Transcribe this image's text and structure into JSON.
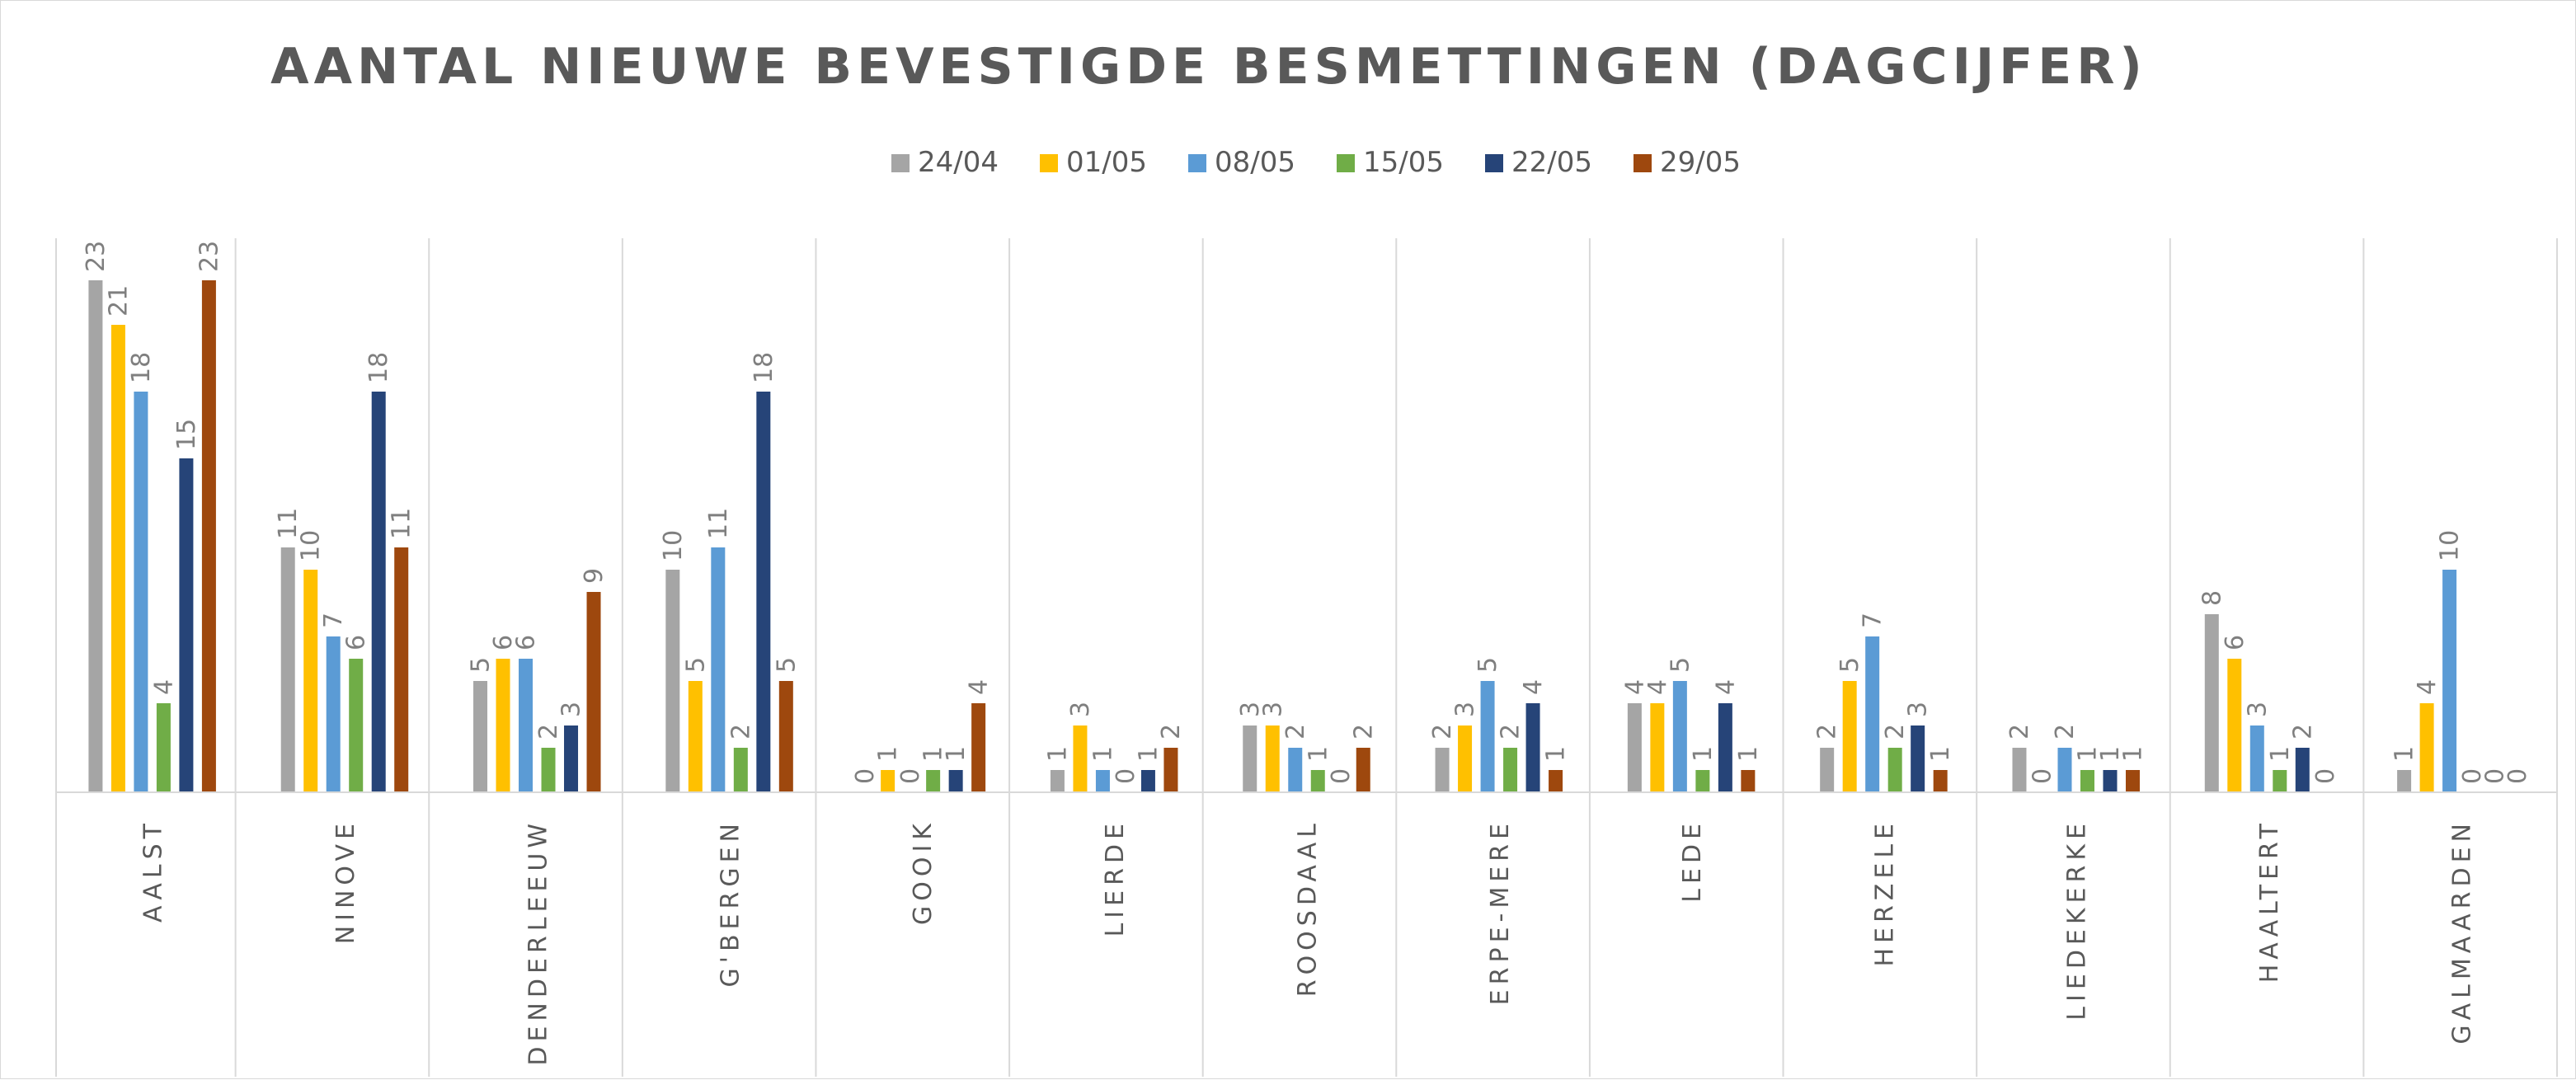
{
  "chart_data": {
    "type": "bar",
    "title": "AANTAL NIEUWE BEVESTIGDE BESMETTINGEN (DAGCIJFER)",
    "xlabel": "",
    "ylabel": "",
    "ylim": [
      0,
      25
    ],
    "grid": false,
    "legend_position": "top",
    "categories": [
      "AALST",
      "NINOVE",
      "DENDERLEEUW",
      "G'BERGEN",
      "GOOIK",
      "LIERDE",
      "ROOSDAAL",
      "ERPE-MERE",
      "LEDE",
      "HERZELE",
      "LIEDEKERKE",
      "HAALTERT",
      "GALMAARDEN"
    ],
    "series": [
      {
        "name": "24/04",
        "color": "#a5a5a5",
        "values": [
          23,
          11,
          5,
          10,
          0,
          1,
          3,
          2,
          4,
          2,
          2,
          8,
          1
        ]
      },
      {
        "name": "01/05",
        "color": "#ffc000",
        "values": [
          21,
          10,
          6,
          5,
          1,
          3,
          3,
          3,
          4,
          5,
          0,
          6,
          4
        ]
      },
      {
        "name": "08/05",
        "color": "#5b9bd5",
        "values": [
          18,
          7,
          6,
          11,
          0,
          1,
          2,
          5,
          5,
          7,
          2,
          3,
          10
        ]
      },
      {
        "name": "15/05",
        "color": "#70ad47",
        "values": [
          4,
          6,
          2,
          2,
          1,
          0,
          1,
          2,
          1,
          2,
          1,
          1,
          0
        ]
      },
      {
        "name": "22/05",
        "color": "#264478",
        "values": [
          15,
          18,
          3,
          18,
          1,
          1,
          0,
          4,
          4,
          3,
          1,
          2,
          0
        ]
      },
      {
        "name": "29/05",
        "color": "#9e480e",
        "values": [
          23,
          11,
          9,
          5,
          4,
          2,
          2,
          1,
          1,
          1,
          1,
          0,
          0
        ]
      }
    ]
  }
}
